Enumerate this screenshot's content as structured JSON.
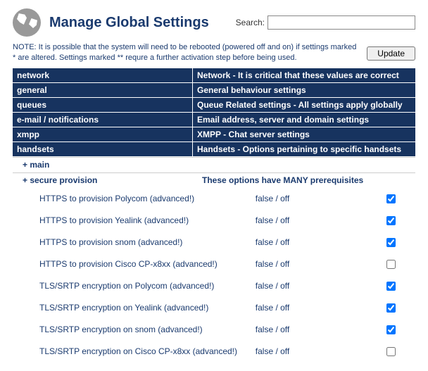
{
  "header": {
    "title": "Manage Global Settings",
    "search_label": "Search:",
    "search_value": ""
  },
  "note": "NOTE: It is possible that the system will need to be rebooted (powered off and on) if settings marked * are altered. Settings marked ** requre a further activation step before being used.",
  "update_label": "Update",
  "categories": [
    {
      "name": "network",
      "desc": "Network - It is critical that these values are correct"
    },
    {
      "name": "general",
      "desc": "General behaviour settings"
    },
    {
      "name": "queues",
      "desc": "Queue Related settings - All settings apply globally"
    },
    {
      "name": "e-mail / notifications",
      "desc": "Email address, server and domain settings"
    },
    {
      "name": "xmpp",
      "desc": "XMPP - Chat server settings"
    },
    {
      "name": "handsets",
      "desc": "Handsets - Options pertaining to specific handsets"
    }
  ],
  "subsections": {
    "main_label": "+ main",
    "secure_label": "+ secure provision",
    "secure_desc": "These options have MANY prerequisites"
  },
  "options": [
    {
      "name": "HTTPS to provision Polycom (advanced!)",
      "value": "false / off",
      "checked": true
    },
    {
      "name": "HTTPS to provision Yealink (advanced!)",
      "value": "false / off",
      "checked": true
    },
    {
      "name": "HTTPS to provision snom (advanced!)",
      "value": "false / off",
      "checked": true
    },
    {
      "name": "HTTPS to provision Cisco CP-x8xx (advanced!)",
      "value": "false / off",
      "checked": false
    },
    {
      "name": "TLS/SRTP encryption on Polycom (advanced!)",
      "value": "false / off",
      "checked": true
    },
    {
      "name": "TLS/SRTP encryption on Yealink (advanced!)",
      "value": "false / off",
      "checked": true
    },
    {
      "name": "TLS/SRTP encryption on snom (advanced!)",
      "value": "false / off",
      "checked": true
    },
    {
      "name": "TLS/SRTP encryption on Cisco CP-x8xx (advanced!)",
      "value": "false / off",
      "checked": false
    }
  ]
}
